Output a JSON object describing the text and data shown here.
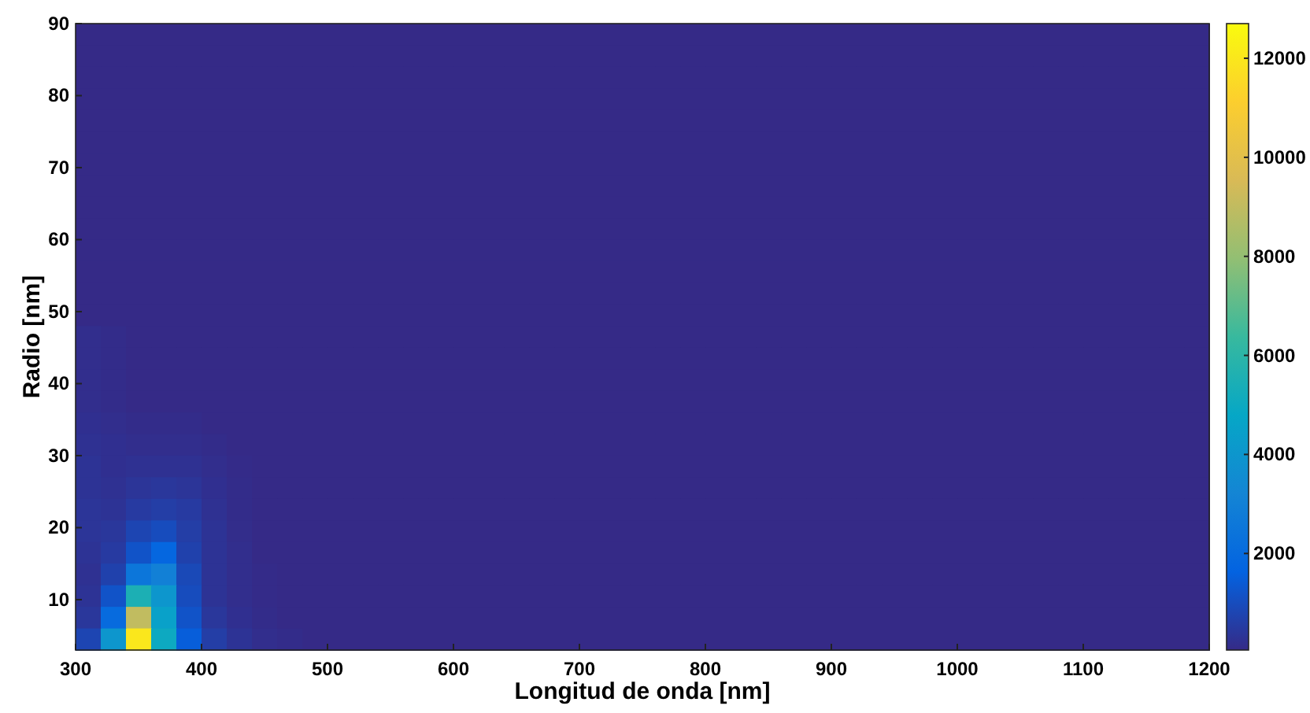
{
  "chart_data": {
    "type": "heatmap",
    "xlabel": "Longitud de onda [nm]",
    "ylabel": "Radio [nm]",
    "xlim": [
      300,
      1200
    ],
    "xticks": [
      300,
      400,
      500,
      600,
      700,
      800,
      900,
      1000,
      1100,
      1200
    ],
    "ylim": [
      3,
      90
    ],
    "yticks": [
      10,
      20,
      30,
      40,
      50,
      60,
      70,
      80,
      90
    ],
    "clim": [
      50,
      12700
    ],
    "cticks": [
      2000,
      4000,
      6000,
      8000,
      10000,
      12000
    ],
    "cells": [
      [
        50,
        50,
        50,
        50,
        50,
        50,
        50,
        50,
        50,
        50,
        50,
        50,
        50,
        50,
        50,
        50,
        50,
        50,
        50,
        50,
        50,
        50,
        50,
        50,
        50,
        50,
        50,
        50,
        50,
        50,
        50,
        50,
        50,
        50,
        50,
        50,
        50,
        50,
        50,
        50,
        50,
        50,
        50,
        50,
        50
      ],
      [
        50,
        50,
        50,
        50,
        50,
        50,
        50,
        50,
        50,
        50,
        50,
        50,
        50,
        50,
        50,
        50,
        50,
        50,
        50,
        50,
        50,
        50,
        50,
        50,
        50,
        50,
        50,
        50,
        50,
        50,
        50,
        50,
        50,
        50,
        50,
        50,
        50,
        50,
        50,
        50,
        50,
        50,
        50,
        50,
        50
      ],
      [
        50,
        50,
        50,
        50,
        50,
        50,
        50,
        50,
        50,
        50,
        50,
        50,
        50,
        50,
        50,
        50,
        50,
        50,
        50,
        50,
        50,
        50,
        50,
        50,
        50,
        50,
        50,
        50,
        50,
        50,
        50,
        50,
        50,
        50,
        50,
        50,
        50,
        50,
        50,
        50,
        50,
        50,
        50,
        50,
        50
      ],
      [
        50,
        50,
        50,
        50,
        50,
        50,
        50,
        50,
        50,
        50,
        50,
        50,
        50,
        50,
        50,
        50,
        50,
        50,
        50,
        50,
        50,
        50,
        50,
        50,
        50,
        50,
        50,
        50,
        50,
        50,
        50,
        50,
        50,
        50,
        50,
        50,
        50,
        50,
        50,
        50,
        50,
        50,
        50,
        50,
        50
      ],
      [
        50,
        50,
        50,
        50,
        50,
        50,
        50,
        50,
        50,
        50,
        50,
        50,
        50,
        50,
        50,
        50,
        50,
        50,
        50,
        50,
        50,
        50,
        50,
        50,
        50,
        50,
        50,
        50,
        50,
        50,
        50,
        50,
        50,
        50,
        50,
        50,
        50,
        50,
        50,
        50,
        50,
        50,
        50,
        50,
        50
      ],
      [
        50,
        50,
        50,
        50,
        50,
        50,
        50,
        50,
        50,
        50,
        50,
        50,
        50,
        50,
        50,
        50,
        50,
        50,
        50,
        50,
        50,
        50,
        50,
        50,
        50,
        50,
        50,
        50,
        50,
        50,
        50,
        50,
        50,
        50,
        50,
        50,
        50,
        50,
        50,
        50,
        50,
        50,
        50,
        50,
        50
      ],
      [
        50,
        50,
        50,
        50,
        50,
        50,
        50,
        50,
        50,
        50,
        50,
        50,
        50,
        50,
        50,
        50,
        50,
        50,
        50,
        50,
        50,
        50,
        50,
        50,
        50,
        50,
        50,
        50,
        50,
        50,
        50,
        50,
        50,
        50,
        50,
        50,
        50,
        50,
        50,
        50,
        50,
        50,
        50,
        50,
        50
      ],
      [
        50,
        50,
        50,
        50,
        50,
        50,
        50,
        50,
        50,
        50,
        50,
        50,
        50,
        50,
        50,
        50,
        50,
        50,
        50,
        50,
        50,
        50,
        50,
        50,
        50,
        50,
        50,
        50,
        50,
        50,
        50,
        50,
        50,
        50,
        50,
        50,
        50,
        50,
        50,
        50,
        50,
        50,
        50,
        50,
        50
      ],
      [
        50,
        50,
        50,
        50,
        50,
        50,
        50,
        50,
        50,
        50,
        50,
        50,
        50,
        50,
        50,
        50,
        50,
        50,
        50,
        50,
        50,
        50,
        50,
        50,
        50,
        50,
        50,
        50,
        50,
        50,
        50,
        50,
        50,
        50,
        50,
        50,
        50,
        50,
        50,
        50,
        50,
        50,
        50,
        50,
        50
      ],
      [
        50,
        50,
        50,
        50,
        50,
        50,
        50,
        50,
        50,
        50,
        50,
        50,
        50,
        50,
        50,
        50,
        50,
        50,
        50,
        50,
        50,
        50,
        50,
        50,
        50,
        50,
        50,
        50,
        50,
        50,
        50,
        50,
        50,
        50,
        50,
        50,
        50,
        50,
        50,
        50,
        50,
        50,
        50,
        50,
        50
      ],
      [
        50,
        50,
        50,
        50,
        50,
        50,
        50,
        50,
        50,
        50,
        50,
        50,
        50,
        50,
        50,
        50,
        50,
        50,
        50,
        50,
        50,
        50,
        50,
        50,
        50,
        50,
        50,
        50,
        50,
        50,
        50,
        50,
        50,
        50,
        50,
        50,
        50,
        50,
        50,
        50,
        50,
        50,
        50,
        50,
        50
      ],
      [
        50,
        50,
        50,
        50,
        50,
        50,
        50,
        50,
        50,
        50,
        50,
        50,
        50,
        50,
        50,
        50,
        50,
        50,
        50,
        50,
        50,
        50,
        50,
        50,
        50,
        50,
        50,
        50,
        50,
        50,
        50,
        50,
        50,
        50,
        50,
        50,
        50,
        50,
        50,
        50,
        50,
        50,
        50,
        50,
        50
      ],
      [
        50,
        50,
        50,
        50,
        50,
        50,
        50,
        50,
        50,
        50,
        50,
        50,
        50,
        50,
        50,
        50,
        50,
        50,
        50,
        50,
        50,
        50,
        50,
        50,
        50,
        50,
        50,
        50,
        50,
        50,
        50,
        50,
        50,
        50,
        50,
        50,
        50,
        50,
        50,
        50,
        50,
        50,
        50,
        50,
        50
      ],
      [
        50,
        50,
        50,
        50,
        50,
        50,
        50,
        50,
        50,
        50,
        50,
        50,
        50,
        50,
        50,
        50,
        50,
        50,
        50,
        50,
        50,
        50,
        50,
        50,
        50,
        50,
        50,
        50,
        50,
        50,
        50,
        50,
        50,
        50,
        50,
        50,
        50,
        50,
        50,
        50,
        50,
        50,
        50,
        50,
        50
      ],
      [
        150,
        100,
        50,
        50,
        50,
        50,
        50,
        50,
        50,
        50,
        50,
        50,
        50,
        50,
        50,
        50,
        50,
        50,
        50,
        50,
        50,
        50,
        50,
        50,
        50,
        50,
        50,
        50,
        50,
        50,
        50,
        50,
        50,
        50,
        50,
        50,
        50,
        50,
        50,
        50,
        50,
        50,
        50,
        50,
        50
      ],
      [
        150,
        100,
        50,
        50,
        50,
        50,
        50,
        50,
        50,
        50,
        50,
        50,
        50,
        50,
        50,
        50,
        50,
        50,
        50,
        50,
        50,
        50,
        50,
        50,
        50,
        50,
        50,
        50,
        50,
        50,
        50,
        50,
        50,
        50,
        50,
        50,
        50,
        50,
        50,
        50,
        50,
        50,
        50,
        50,
        50
      ],
      [
        150,
        100,
        50,
        50,
        50,
        50,
        50,
        50,
        50,
        50,
        50,
        50,
        50,
        50,
        50,
        50,
        50,
        50,
        50,
        50,
        50,
        50,
        50,
        50,
        50,
        50,
        50,
        50,
        50,
        50,
        50,
        50,
        50,
        50,
        50,
        50,
        50,
        50,
        50,
        50,
        50,
        50,
        50,
        50,
        50
      ],
      [
        150,
        100,
        50,
        50,
        50,
        50,
        50,
        50,
        50,
        50,
        50,
        50,
        50,
        50,
        50,
        50,
        50,
        50,
        50,
        50,
        50,
        50,
        50,
        50,
        50,
        50,
        50,
        50,
        50,
        50,
        50,
        50,
        50,
        50,
        50,
        50,
        50,
        50,
        50,
        50,
        50,
        50,
        50,
        50,
        50
      ],
      [
        200,
        150,
        100,
        100,
        100,
        50,
        50,
        50,
        50,
        50,
        50,
        50,
        50,
        50,
        50,
        50,
        50,
        50,
        50,
        50,
        50,
        50,
        50,
        50,
        50,
        50,
        50,
        50,
        50,
        50,
        50,
        50,
        50,
        50,
        50,
        50,
        50,
        50,
        50,
        50,
        50,
        50,
        50,
        50,
        50
      ],
      [
        250,
        200,
        150,
        150,
        150,
        100,
        50,
        50,
        50,
        50,
        50,
        50,
        50,
        50,
        50,
        50,
        50,
        50,
        50,
        50,
        50,
        50,
        50,
        50,
        50,
        50,
        50,
        50,
        50,
        50,
        50,
        50,
        50,
        50,
        50,
        50,
        50,
        50,
        50,
        50,
        50,
        50,
        50,
        50,
        50
      ],
      [
        300,
        200,
        250,
        250,
        250,
        150,
        80,
        50,
        50,
        50,
        50,
        50,
        50,
        50,
        50,
        50,
        50,
        50,
        50,
        50,
        50,
        50,
        50,
        50,
        50,
        50,
        50,
        50,
        50,
        50,
        50,
        50,
        50,
        50,
        50,
        50,
        50,
        50,
        50,
        50,
        50,
        50,
        50,
        50,
        50
      ],
      [
        300,
        250,
        350,
        400,
        350,
        200,
        100,
        50,
        50,
        50,
        50,
        50,
        50,
        50,
        50,
        50,
        50,
        50,
        50,
        50,
        50,
        50,
        50,
        50,
        50,
        50,
        50,
        50,
        50,
        50,
        50,
        50,
        50,
        50,
        50,
        50,
        50,
        50,
        50,
        50,
        50,
        50,
        50,
        50,
        50
      ],
      [
        350,
        300,
        500,
        600,
        500,
        250,
        100,
        50,
        50,
        50,
        50,
        50,
        50,
        50,
        50,
        50,
        50,
        50,
        50,
        50,
        50,
        50,
        50,
        50,
        50,
        50,
        50,
        50,
        50,
        50,
        50,
        50,
        50,
        50,
        50,
        50,
        50,
        50,
        50,
        50,
        50,
        50,
        50,
        50,
        50
      ],
      [
        350,
        400,
        800,
        1000,
        600,
        300,
        120,
        50,
        50,
        50,
        50,
        50,
        50,
        50,
        50,
        50,
        50,
        50,
        50,
        50,
        50,
        50,
        50,
        50,
        50,
        50,
        50,
        50,
        50,
        50,
        50,
        50,
        50,
        50,
        50,
        50,
        50,
        50,
        50,
        50,
        50,
        50,
        50,
        50,
        50
      ],
      [
        300,
        500,
        1200,
        1800,
        700,
        300,
        150,
        50,
        50,
        50,
        50,
        50,
        50,
        50,
        50,
        50,
        50,
        50,
        50,
        50,
        50,
        50,
        50,
        50,
        50,
        50,
        50,
        50,
        50,
        50,
        50,
        50,
        50,
        50,
        50,
        50,
        50,
        50,
        50,
        50,
        50,
        50,
        50,
        50,
        50
      ],
      [
        250,
        700,
        2500,
        3000,
        900,
        300,
        150,
        80,
        50,
        50,
        50,
        50,
        50,
        50,
        50,
        50,
        50,
        50,
        50,
        50,
        50,
        50,
        50,
        50,
        50,
        50,
        50,
        50,
        50,
        50,
        50,
        50,
        50,
        50,
        50,
        50,
        50,
        50,
        50,
        50,
        50,
        50,
        50,
        50,
        50
      ],
      [
        300,
        1200,
        5500,
        4000,
        1000,
        300,
        150,
        80,
        50,
        50,
        50,
        50,
        50,
        50,
        50,
        50,
        50,
        50,
        50,
        50,
        50,
        50,
        50,
        50,
        50,
        50,
        50,
        50,
        50,
        50,
        50,
        50,
        50,
        50,
        50,
        50,
        50,
        50,
        50,
        50,
        50,
        50,
        50,
        50,
        50
      ],
      [
        400,
        2000,
        9000,
        4500,
        1200,
        400,
        200,
        100,
        50,
        50,
        50,
        50,
        50,
        50,
        50,
        50,
        50,
        50,
        50,
        50,
        50,
        50,
        50,
        50,
        50,
        50,
        50,
        50,
        50,
        50,
        50,
        50,
        50,
        50,
        50,
        50,
        50,
        50,
        50,
        50,
        50,
        50,
        50,
        50,
        50
      ],
      [
        800,
        4000,
        12000,
        5000,
        1500,
        600,
        300,
        150,
        100,
        50,
        50,
        50,
        50,
        50,
        50,
        50,
        50,
        50,
        50,
        50,
        50,
        50,
        50,
        50,
        50,
        50,
        50,
        50,
        50,
        50,
        50,
        50,
        50,
        50,
        50,
        50,
        50,
        50,
        50,
        50,
        50,
        50,
        50,
        50,
        50
      ]
    ]
  }
}
